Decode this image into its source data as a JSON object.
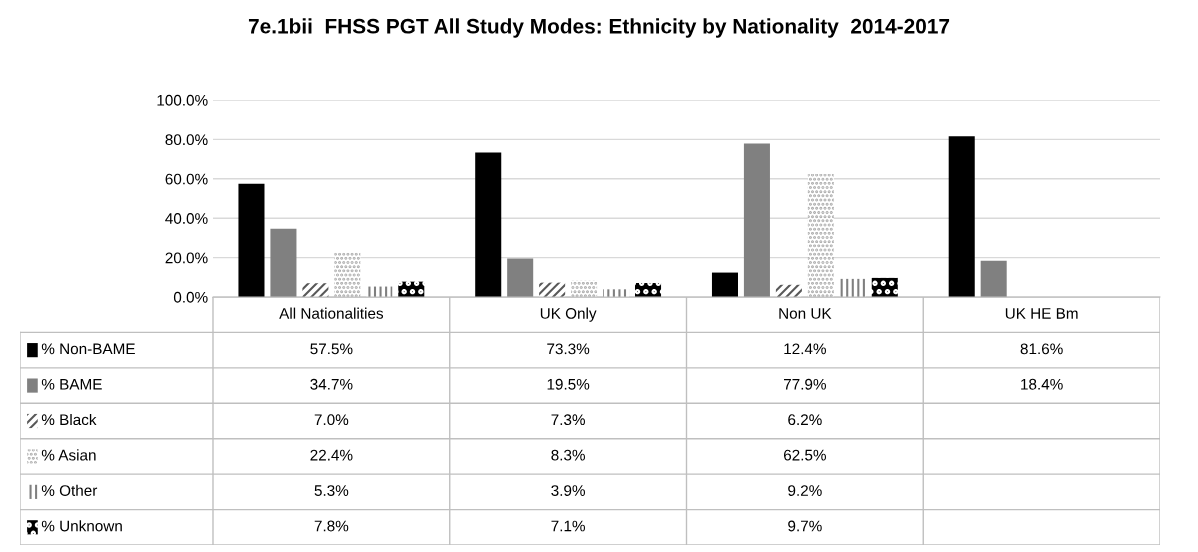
{
  "chart_data": {
    "type": "bar",
    "title": "7e.1bii  FHSS PGT All Study Modes: Ethnicity by Nationality  2014-2017",
    "categories": [
      "All Nationalities",
      "UK Only",
      "Non UK",
      "UK HE Bm"
    ],
    "series": [
      {
        "name": "% Non-BAME",
        "color": "#000000",
        "values": [
          57.5,
          73.3,
          12.4,
          81.6
        ],
        "value_labels": [
          "57.5%",
          "73.3%",
          "12.4%",
          "81.6%"
        ]
      },
      {
        "name": "% BAME",
        "color": "#808080",
        "values": [
          34.7,
          19.5,
          77.9,
          18.4
        ],
        "value_labels": [
          "34.7%",
          "19.5%",
          "77.9%",
          "18.4%"
        ]
      },
      {
        "name": "% Black",
        "color": "#595959",
        "values": [
          7.0,
          7.3,
          6.2,
          null
        ],
        "value_labels": [
          "7.0%",
          "7.3%",
          "6.2%",
          null
        ]
      },
      {
        "name": "% Asian",
        "color": "#a6a6a6",
        "values": [
          22.4,
          8.3,
          62.5,
          null
        ],
        "value_labels": [
          "22.4%",
          "8.3%",
          "62.5%",
          null
        ]
      },
      {
        "name": "% Other",
        "color": "#7f7f7f",
        "values": [
          5.3,
          3.9,
          9.2,
          null
        ],
        "value_labels": [
          "5.3%",
          "3.9%",
          "9.2%",
          null
        ]
      },
      {
        "name": "% Unknown",
        "color": "#000000",
        "values": [
          7.8,
          7.1,
          9.7,
          null
        ],
        "value_labels": [
          "7.8%",
          "7.1%",
          "9.7%",
          null
        ]
      }
    ],
    "ylim": [
      0,
      100
    ],
    "yticks": [
      {
        "value": 0,
        "label": "0.0%"
      },
      {
        "value": 20,
        "label": "20.0%"
      },
      {
        "value": 40,
        "label": "40.0%"
      },
      {
        "value": 60,
        "label": "60.0%"
      },
      {
        "value": 80,
        "label": "80.0%"
      },
      {
        "value": 100,
        "label": "100.0%"
      }
    ],
    "grid": "y",
    "legend": "bottom left"
  }
}
